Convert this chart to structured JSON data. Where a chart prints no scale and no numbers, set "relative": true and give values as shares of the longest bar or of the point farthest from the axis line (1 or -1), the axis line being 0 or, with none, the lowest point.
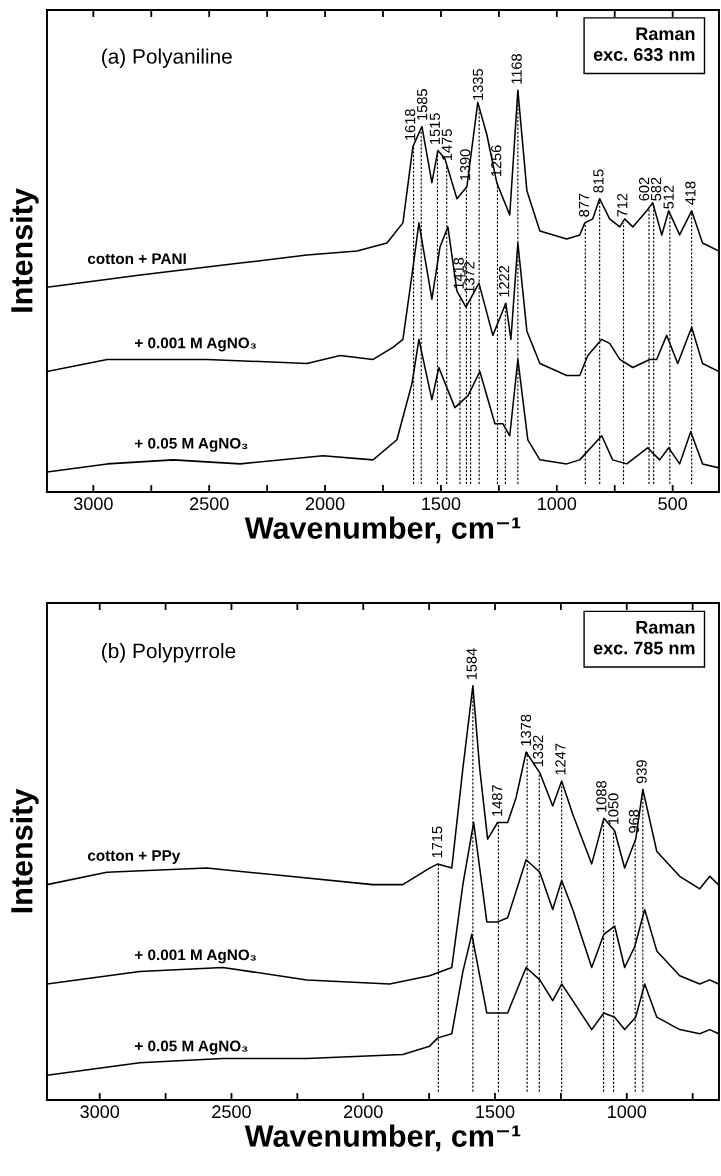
{
  "chart_data": [
    {
      "type": "line",
      "relative": true,
      "title": "(a) Polyaniline",
      "xlabel": "Wavenumber, cm⁻¹",
      "ylabel": "Intensity",
      "xlim": [
        3200,
        300
      ],
      "xticks": [
        3000,
        {
          "value": 2750,
          "label": null
        },
        2500,
        {
          "value": 2250,
          "label": null
        },
        2000,
        {
          "value": 1750,
          "label": null
        },
        1500,
        {
          "value": 1250,
          "label": null
        },
        1000,
        {
          "value": 750,
          "label": null
        },
        500
      ],
      "series": [
        {
          "name": "cotton + PANI",
          "color": "#000000",
          "x": [
            3200,
            2797,
            2366,
            2078,
            1862,
            1733,
            1664,
            1621,
            1582,
            1539,
            1513,
            1483,
            1431,
            1388,
            1341,
            1302,
            1259,
            1203,
            1168,
            1129,
            1073,
            957,
            901,
            879,
            845,
            815,
            772,
            728,
            707,
            672,
            612,
            586,
            547,
            517,
            470,
            418,
            371,
            300
          ],
          "values": [
            0.51,
            0.54,
            0.57,
            0.59,
            0.6,
            0.62,
            0.67,
            0.86,
            0.91,
            0.77,
            0.85,
            0.83,
            0.73,
            0.76,
            0.97,
            0.89,
            0.77,
            0.69,
            1.0,
            0.75,
            0.65,
            0.63,
            0.64,
            0.67,
            0.68,
            0.73,
            0.68,
            0.66,
            0.68,
            0.66,
            0.7,
            0.72,
            0.64,
            0.7,
            0.64,
            0.7,
            0.62,
            0.6
          ]
        },
        {
          "name": "+ 0.001 M AgNO₃",
          "color": "#000000",
          "x": [
            3200,
            2940,
            2509,
            2078,
            1935,
            1793,
            1707,
            1664,
            1625,
            1595,
            1539,
            1504,
            1470,
            1431,
            1392,
            1336,
            1276,
            1220,
            1198,
            1168,
            1129,
            1073,
            957,
            901,
            866,
            806,
            772,
            728,
            672,
            599,
            569,
            526,
            478,
            418,
            371,
            300
          ],
          "values": [
            0.3,
            0.33,
            0.33,
            0.32,
            0.34,
            0.33,
            0.36,
            0.38,
            0.54,
            0.67,
            0.48,
            0.61,
            0.66,
            0.5,
            0.46,
            0.52,
            0.39,
            0.47,
            0.38,
            0.62,
            0.4,
            0.32,
            0.29,
            0.29,
            0.34,
            0.38,
            0.37,
            0.33,
            0.31,
            0.33,
            0.33,
            0.39,
            0.32,
            0.41,
            0.32,
            0.3
          ]
        },
        {
          "name": "+ 0.05 M AgNO₃",
          "color": "#000000",
          "x": [
            3200,
            2940,
            2655,
            2366,
            2009,
            1793,
            1690,
            1625,
            1595,
            1539,
            1509,
            1440,
            1383,
            1332,
            1267,
            1233,
            1203,
            1168,
            1125,
            1073,
            957,
            901,
            806,
            759,
            698,
            608,
            556,
            517,
            470,
            422,
            371,
            300
          ],
          "values": [
            0.05,
            0.07,
            0.08,
            0.07,
            0.09,
            0.08,
            0.13,
            0.27,
            0.38,
            0.23,
            0.31,
            0.21,
            0.24,
            0.3,
            0.17,
            0.17,
            0.14,
            0.33,
            0.13,
            0.08,
            0.07,
            0.08,
            0.14,
            0.08,
            0.07,
            0.11,
            0.08,
            0.11,
            0.07,
            0.15,
            0.07,
            0.06
          ]
        }
      ],
      "annotations": [
        "Raman\nexc. 633 nm",
        {
          "text": "1618",
          "x": 1618,
          "y": 0.86
        },
        {
          "text": "1585",
          "x": 1585,
          "y": 0.91
        },
        {
          "text": "1515",
          "x": 1515,
          "y": 0.85
        },
        {
          "text": "1475",
          "x": 1475,
          "y": 0.81
        },
        {
          "text": "1418",
          "x": 1418,
          "y": 0.49
        },
        {
          "text": "1390",
          "x": 1390,
          "y": 0.76
        },
        {
          "text": "1372",
          "x": 1372,
          "y": 0.48
        },
        {
          "text": "1335",
          "x": 1335,
          "y": 0.96
        },
        {
          "text": "1256",
          "x": 1256,
          "y": 0.77
        },
        {
          "text": "1222",
          "x": 1222,
          "y": 0.47
        },
        {
          "text": "1168",
          "x": 1168,
          "y": 1.0
        },
        {
          "text": "877",
          "x": 877,
          "y": 0.67
        },
        {
          "text": "815",
          "x": 815,
          "y": 0.73
        },
        {
          "text": "712",
          "x": 712,
          "y": 0.67
        },
        {
          "text": "602",
          "x": 602,
          "y": 0.71
        },
        {
          "text": "582",
          "x": 582,
          "y": 0.71
        },
        {
          "text": "512",
          "x": 512,
          "y": 0.69
        },
        {
          "text": "418",
          "x": 418,
          "y": 0.7
        }
      ]
    },
    {
      "type": "line",
      "relative": true,
      "title": "(b) Polypyrrole",
      "xlabel": "Wavenumber, cm⁻¹",
      "ylabel": "Intensity",
      "xlim": [
        3200,
        650
      ],
      "xticks": [
        3000,
        {
          "value": 2750,
          "label": null
        },
        2500,
        {
          "value": 2250,
          "label": null
        },
        2000,
        {
          "value": 1750,
          "label": null
        },
        1500,
        {
          "value": 1250,
          "label": null
        },
        1000,
        {
          "value": 750,
          "label": null
        }
      ],
      "series": [
        {
          "name": "cotton + PPy",
          "color": "#000000",
          "x": [
            3200,
            2973,
            2594,
            2279,
            1964,
            1850,
            1748,
            1717,
            1664,
            1622,
            1584,
            1558,
            1528,
            1490,
            1452,
            1420,
            1382,
            1330,
            1281,
            1247,
            1205,
            1133,
            1087,
            1046,
            1008,
            966,
            939,
            886,
            799,
            723,
            685,
            652
          ],
          "values": [
            0.52,
            0.55,
            0.56,
            0.54,
            0.52,
            0.52,
            0.56,
            0.57,
            0.56,
            0.8,
            1.0,
            0.8,
            0.63,
            0.67,
            0.67,
            0.73,
            0.84,
            0.79,
            0.71,
            0.77,
            0.69,
            0.57,
            0.68,
            0.65,
            0.56,
            0.63,
            0.75,
            0.6,
            0.54,
            0.51,
            0.54,
            0.52
          ]
        },
        {
          "name": "+ 0.001 M AgNO₃",
          "color": "#000000",
          "x": [
            3200,
            2848,
            2533,
            2214,
            1900,
            1748,
            1664,
            1622,
            1581,
            1531,
            1490,
            1452,
            1382,
            1330,
            1281,
            1247,
            1205,
            1133,
            1087,
            1046,
            1008,
            970,
            932,
            886,
            799,
            723,
            685,
            652
          ],
          "values": [
            0.28,
            0.31,
            0.32,
            0.29,
            0.28,
            0.3,
            0.32,
            0.52,
            0.67,
            0.43,
            0.43,
            0.44,
            0.58,
            0.55,
            0.46,
            0.53,
            0.46,
            0.32,
            0.4,
            0.42,
            0.32,
            0.37,
            0.46,
            0.36,
            0.3,
            0.28,
            0.29,
            0.28
          ]
        },
        {
          "name": "+ 0.05 M AgNO₃",
          "color": "#000000",
          "x": [
            3200,
            2848,
            2533,
            2214,
            1850,
            1748,
            1717,
            1664,
            1622,
            1588,
            1531,
            1490,
            1452,
            1382,
            1330,
            1281,
            1247,
            1205,
            1133,
            1087,
            1046,
            1008,
            966,
            932,
            886,
            799,
            723,
            685,
            652
          ],
          "values": [
            0.06,
            0.09,
            0.1,
            0.1,
            0.11,
            0.13,
            0.15,
            0.16,
            0.31,
            0.4,
            0.21,
            0.21,
            0.21,
            0.32,
            0.29,
            0.24,
            0.28,
            0.24,
            0.17,
            0.21,
            0.2,
            0.17,
            0.2,
            0.28,
            0.2,
            0.17,
            0.16,
            0.17,
            0.16
          ]
        }
      ],
      "annotations": [
        "Raman\nexc. 785 nm",
        {
          "text": "1715",
          "x": 1715,
          "y": 0.57
        },
        {
          "text": "1584",
          "x": 1584,
          "y": 1.0
        },
        {
          "text": "1487",
          "x": 1487,
          "y": 0.67
        },
        {
          "text": "1378",
          "x": 1378,
          "y": 0.84
        },
        {
          "text": "1332",
          "x": 1332,
          "y": 0.79
        },
        {
          "text": "1247",
          "x": 1247,
          "y": 0.77
        },
        {
          "text": "1088",
          "x": 1088,
          "y": 0.68
        },
        {
          "text": "1050",
          "x": 1050,
          "y": 0.65
        },
        {
          "text": "968",
          "x": 968,
          "y": 0.63
        },
        {
          "text": "939",
          "x": 939,
          "y": 0.75
        }
      ]
    }
  ]
}
